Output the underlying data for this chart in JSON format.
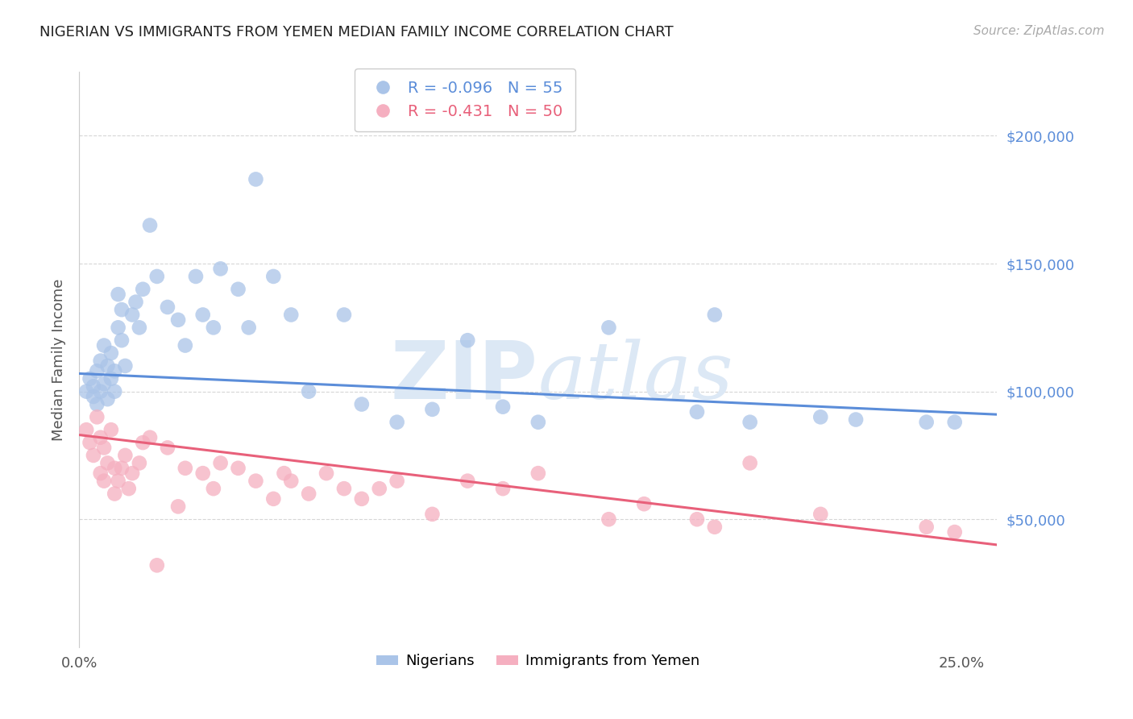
{
  "title": "NIGERIAN VS IMMIGRANTS FROM YEMEN MEDIAN FAMILY INCOME CORRELATION CHART",
  "source": "Source: ZipAtlas.com",
  "ylabel": "Median Family Income",
  "ytick_labels": [
    "$50,000",
    "$100,000",
    "$150,000",
    "$200,000"
  ],
  "ytick_values": [
    50000,
    100000,
    150000,
    200000
  ],
  "ymin": 0,
  "ymax": 225000,
  "xmin": 0.0,
  "xmax": 0.26,
  "legend_r1": "-0.096",
  "legend_n1": "55",
  "legend_r2": "-0.431",
  "legend_n2": "50",
  "scatter_blue_color": "#aac4e8",
  "scatter_pink_color": "#f5afc0",
  "line_blue_color": "#5b8dd9",
  "line_pink_color": "#e8607a",
  "watermark_color": "#dce8f5",
  "grid_color": "#cccccc",
  "title_color": "#222222",
  "ytick_color": "#5b8dd9",
  "blue_x": [
    0.002,
    0.003,
    0.004,
    0.004,
    0.005,
    0.005,
    0.006,
    0.006,
    0.007,
    0.007,
    0.008,
    0.008,
    0.009,
    0.009,
    0.01,
    0.01,
    0.011,
    0.011,
    0.012,
    0.012,
    0.013,
    0.015,
    0.016,
    0.017,
    0.018,
    0.02,
    0.022,
    0.025,
    0.028,
    0.03,
    0.033,
    0.035,
    0.038,
    0.04,
    0.045,
    0.048,
    0.05,
    0.055,
    0.06,
    0.065,
    0.075,
    0.08,
    0.09,
    0.1,
    0.11,
    0.12,
    0.13,
    0.15,
    0.175,
    0.18,
    0.19,
    0.21,
    0.22,
    0.24,
    0.248
  ],
  "blue_y": [
    100000,
    105000,
    98000,
    102000,
    95000,
    108000,
    100000,
    112000,
    103000,
    118000,
    97000,
    110000,
    105000,
    115000,
    108000,
    100000,
    125000,
    138000,
    132000,
    120000,
    110000,
    130000,
    135000,
    125000,
    140000,
    165000,
    145000,
    133000,
    128000,
    118000,
    145000,
    130000,
    125000,
    148000,
    140000,
    125000,
    183000,
    145000,
    130000,
    100000,
    130000,
    95000,
    88000,
    93000,
    120000,
    94000,
    88000,
    125000,
    92000,
    130000,
    88000,
    90000,
    89000,
    88000,
    88000
  ],
  "pink_x": [
    0.002,
    0.003,
    0.004,
    0.005,
    0.006,
    0.006,
    0.007,
    0.007,
    0.008,
    0.009,
    0.01,
    0.01,
    0.011,
    0.012,
    0.013,
    0.014,
    0.015,
    0.017,
    0.018,
    0.02,
    0.022,
    0.025,
    0.028,
    0.03,
    0.035,
    0.038,
    0.04,
    0.045,
    0.05,
    0.055,
    0.058,
    0.06,
    0.065,
    0.07,
    0.075,
    0.08,
    0.085,
    0.09,
    0.1,
    0.11,
    0.12,
    0.13,
    0.15,
    0.16,
    0.175,
    0.18,
    0.19,
    0.21,
    0.24,
    0.248
  ],
  "pink_y": [
    85000,
    80000,
    75000,
    90000,
    82000,
    68000,
    78000,
    65000,
    72000,
    85000,
    70000,
    60000,
    65000,
    70000,
    75000,
    62000,
    68000,
    72000,
    80000,
    82000,
    32000,
    78000,
    55000,
    70000,
    68000,
    62000,
    72000,
    70000,
    65000,
    58000,
    68000,
    65000,
    60000,
    68000,
    62000,
    58000,
    62000,
    65000,
    52000,
    65000,
    62000,
    68000,
    50000,
    56000,
    50000,
    47000,
    72000,
    52000,
    47000,
    45000
  ]
}
